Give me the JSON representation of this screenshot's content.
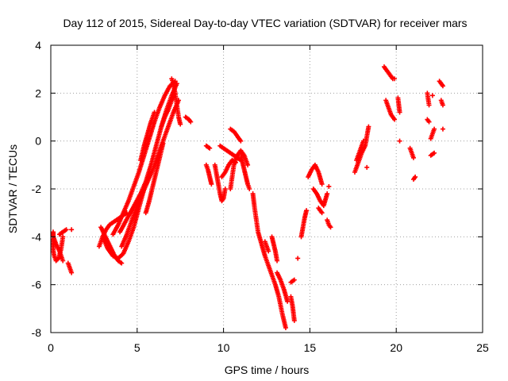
{
  "chart_data": {
    "type": "scatter",
    "title": "Day 112 of 2015, Sidereal Day-to-day VTEC variation (SDTVAR) for receiver mars",
    "xlabel": "GPS time / hours",
    "ylabel": "SDTVAR / TECUs",
    "xlim": [
      0,
      25
    ],
    "ylim": [
      -8,
      4
    ],
    "x_ticks": [
      "0",
      "5",
      "10",
      "15",
      "20",
      "25"
    ],
    "y_ticks": [
      "4",
      "2",
      "0",
      "-2",
      "-4",
      "-6",
      "-8"
    ],
    "grid": true,
    "marker": "plus",
    "marker_color": "#ff0000",
    "segments": [
      {
        "x": [
          0.0,
          0.1,
          0.2,
          0.3,
          0.45,
          0.6,
          0.7
        ],
        "y": [
          -4.1,
          -4.4,
          -4.8,
          -5.0,
          -4.9,
          -4.5,
          -4.0
        ]
      },
      {
        "x": [
          0.0,
          0.15,
          0.3,
          0.5,
          0.7
        ],
        "y": [
          -3.8,
          -4.0,
          -4.3,
          -4.6,
          -5.0
        ]
      },
      {
        "x": [
          0.5,
          0.7,
          0.9
        ],
        "y": [
          -3.9,
          -3.8,
          -3.7
        ]
      },
      {
        "x": [
          1.0,
          1.1,
          1.2
        ],
        "y": [
          -5.1,
          -5.3,
          -5.5
        ]
      },
      {
        "x": [
          1.2
        ],
        "y": [
          -3.7
        ]
      },
      {
        "x": [
          2.8,
          3.0,
          3.2,
          3.4,
          3.6,
          3.8,
          4.0,
          4.2,
          4.4
        ],
        "y": [
          -4.4,
          -4.0,
          -3.7,
          -3.5,
          -3.4,
          -3.3,
          -3.2,
          -3.1,
          -3.0
        ]
      },
      {
        "x": [
          2.9,
          3.1,
          3.3,
          3.5,
          3.7,
          3.9,
          4.1
        ],
        "y": [
          -3.6,
          -3.9,
          -4.2,
          -4.5,
          -4.8,
          -5.0,
          -5.1
        ]
      },
      {
        "x": [
          3.0,
          3.3,
          3.6,
          3.9,
          4.2,
          4.5,
          4.8,
          5.1,
          5.4
        ],
        "y": [
          -4.0,
          -4.5,
          -4.8,
          -4.9,
          -4.7,
          -4.2,
          -3.6,
          -2.8,
          -2.0
        ]
      },
      {
        "x": [
          3.6,
          3.9,
          4.2,
          4.5,
          4.8,
          5.1,
          5.4,
          5.7,
          6.0,
          6.3,
          6.6,
          6.9,
          7.2
        ],
        "y": [
          -3.9,
          -3.5,
          -3.0,
          -2.5,
          -1.9,
          -1.3,
          -0.6,
          0.1,
          0.8,
          1.4,
          1.9,
          2.3,
          2.5
        ]
      },
      {
        "x": [
          4.0,
          4.3,
          4.6,
          4.9,
          5.2,
          5.5,
          5.8,
          6.1,
          6.4,
          6.7,
          7.0,
          7.3
        ],
        "y": [
          -3.8,
          -3.4,
          -3.0,
          -2.6,
          -2.2,
          -1.7,
          -1.0,
          -0.2,
          0.6,
          1.3,
          1.9,
          2.4
        ]
      },
      {
        "x": [
          4.1,
          4.4,
          4.7,
          5.0,
          5.3,
          5.6,
          5.9,
          6.2,
          6.5,
          6.8,
          7.1,
          7.4
        ],
        "y": [
          -4.4,
          -3.9,
          -3.3,
          -2.7,
          -2.2,
          -1.7,
          -1.2,
          -0.6,
          0.0,
          0.6,
          1.2,
          1.7
        ]
      },
      {
        "x": [
          5.2,
          5.4,
          5.6,
          5.8,
          6.0
        ],
        "y": [
          -0.8,
          -0.2,
          0.3,
          0.8,
          1.2
        ]
      },
      {
        "x": [
          5.5,
          5.7,
          5.9,
          6.1,
          6.3,
          6.5
        ],
        "y": [
          -3.0,
          -2.5,
          -1.9,
          -1.3,
          -0.7,
          -0.1
        ]
      },
      {
        "x": [
          6.4,
          6.6,
          6.8,
          7.0,
          7.2
        ],
        "y": [
          0.6,
          1.0,
          1.3,
          1.7,
          2.0
        ]
      },
      {
        "x": [
          7.0,
          7.1,
          7.2,
          7.3,
          7.4,
          7.5
        ],
        "y": [
          2.6,
          2.4,
          2.0,
          1.5,
          1.0,
          0.7
        ]
      },
      {
        "x": [
          7.8,
          8.0,
          8.1
        ],
        "y": [
          1.0,
          0.9,
          0.8
        ]
      },
      {
        "x": [
          9.0,
          9.2
        ],
        "y": [
          -0.2,
          -0.3
        ]
      },
      {
        "x": [
          9.0,
          9.1,
          9.2,
          9.3
        ],
        "y": [
          -1.0,
          -1.2,
          -1.5,
          -1.8
        ]
      },
      {
        "x": [
          9.5,
          9.6,
          9.7,
          9.8,
          9.9,
          10.0,
          10.1
        ],
        "y": [
          -1.0,
          -1.4,
          -1.8,
          -2.2,
          -2.5,
          -2.4,
          -2.0
        ]
      },
      {
        "x": [
          9.8,
          10.0,
          10.2,
          10.4,
          10.6,
          10.8,
          11.0
        ],
        "y": [
          -0.2,
          -0.3,
          -0.4,
          -0.5,
          -0.6,
          -0.7,
          -0.8
        ]
      },
      {
        "x": [
          9.9,
          10.1,
          10.3,
          10.5,
          10.7
        ],
        "y": [
          -1.5,
          -1.3,
          -1.0,
          -0.8,
          -0.9
        ]
      },
      {
        "x": [
          10.4,
          10.5,
          10.6,
          10.8,
          11.0,
          11.2,
          11.4
        ],
        "y": [
          -2.0,
          -1.5,
          -1.0,
          -0.6,
          -0.4,
          -0.6,
          -1.0
        ]
      },
      {
        "x": [
          10.4,
          10.6,
          10.8,
          11.0
        ],
        "y": [
          0.5,
          0.4,
          0.2,
          0.0
        ]
      },
      {
        "x": [
          11.0,
          11.1,
          11.2,
          11.3,
          11.4,
          11.5
        ],
        "y": [
          -0.5,
          -0.9,
          -1.2,
          -1.5,
          -1.8,
          -2.0
        ]
      },
      {
        "x": [
          11.7,
          11.8,
          11.9,
          12.0,
          12.2,
          12.4,
          12.6,
          12.8,
          13.0,
          13.2,
          13.4,
          13.6
        ],
        "y": [
          -2.2,
          -2.8,
          -3.3,
          -3.8,
          -4.3,
          -4.8,
          -5.2,
          -5.6,
          -6.0,
          -6.5,
          -7.2,
          -7.8
        ]
      },
      {
        "x": [
          12.4,
          12.5,
          12.6
        ],
        "y": [
          -4.2,
          -4.4,
          -4.6
        ]
      },
      {
        "x": [
          12.8,
          12.9,
          13.0,
          13.1
        ],
        "y": [
          -4.0,
          -4.3,
          -4.6,
          -5.0
        ]
      },
      {
        "x": [
          13.1,
          13.3,
          13.5,
          13.7
        ],
        "y": [
          -5.5,
          -5.8,
          -6.2,
          -6.7
        ]
      },
      {
        "x": [
          13.9,
          14.0,
          14.1
        ],
        "y": [
          -6.5,
          -6.9,
          -7.5
        ]
      },
      {
        "x": [
          13.9,
          14.1
        ],
        "y": [
          -5.9,
          -5.8
        ]
      },
      {
        "x": [
          14.3
        ],
        "y": [
          -4.9
        ]
      },
      {
        "x": [
          14.5,
          14.6,
          14.7,
          14.8
        ],
        "y": [
          -4.0,
          -3.6,
          -3.2,
          -2.9
        ]
      },
      {
        "x": [
          14.9,
          15.1,
          15.3,
          15.5,
          15.7
        ],
        "y": [
          -1.5,
          -1.2,
          -1.0,
          -1.3,
          -1.8
        ]
      },
      {
        "x": [
          15.2,
          15.4,
          15.6,
          15.8,
          16.0
        ],
        "y": [
          -2.0,
          -2.2,
          -2.5,
          -2.7,
          -2.2
        ]
      },
      {
        "x": [
          15.5,
          15.6,
          15.7
        ],
        "y": [
          -2.8,
          -2.9,
          -3.0
        ]
      },
      {
        "x": [
          16.0,
          16.1,
          16.2
        ],
        "y": [
          -3.3,
          -3.5,
          -3.6
        ]
      },
      {
        "x": [
          16.1
        ],
        "y": [
          -1.9
        ]
      },
      {
        "x": [
          17.6,
          17.8,
          18.0,
          18.2,
          18.4
        ],
        "y": [
          -1.3,
          -0.9,
          -0.5,
          -0.2,
          0.6
        ]
      },
      {
        "x": [
          17.7,
          17.9,
          18.1
        ],
        "y": [
          -0.8,
          -0.4,
          0.0
        ]
      },
      {
        "x": [
          18.3
        ],
        "y": [
          -1.1
        ]
      },
      {
        "x": [
          19.3,
          19.4,
          19.5,
          19.6,
          19.7,
          19.8,
          19.9
        ],
        "y": [
          3.1,
          3.0,
          2.9,
          2.8,
          2.7,
          2.6,
          2.6
        ]
      },
      {
        "x": [
          19.4,
          19.5,
          19.6,
          19.7,
          19.8,
          19.9
        ],
        "y": [
          1.7,
          1.5,
          1.3,
          1.1,
          1.0,
          0.9
        ]
      },
      {
        "x": [
          20.1,
          20.2
        ],
        "y": [
          1.8,
          1.2
        ]
      },
      {
        "x": [
          20.2
        ],
        "y": [
          0.0
        ]
      },
      {
        "x": [
          20.8,
          20.9,
          21.0
        ],
        "y": [
          -0.3,
          -0.5,
          -0.7
        ]
      },
      {
        "x": [
          21.0,
          21.1
        ],
        "y": [
          -1.6,
          -1.5
        ]
      },
      {
        "x": [
          21.8,
          21.9
        ],
        "y": [
          2.0,
          1.5
        ]
      },
      {
        "x": [
          21.8,
          21.9
        ],
        "y": [
          0.9,
          0.8
        ]
      },
      {
        "x": [
          22.0,
          22.2
        ],
        "y": [
          -0.6,
          -0.5
        ]
      },
      {
        "x": [
          22.0,
          22.1,
          22.2
        ],
        "y": [
          0.1,
          0.3,
          0.5
        ]
      },
      {
        "x": [
          22.1
        ],
        "y": [
          1.9
        ]
      },
      {
        "x": [
          22.5,
          22.6,
          22.7
        ],
        "y": [
          2.5,
          2.4,
          2.3
        ]
      },
      {
        "x": [
          22.6,
          22.7
        ],
        "y": [
          1.7,
          1.5
        ]
      },
      {
        "x": [
          22.7
        ],
        "y": [
          0.5
        ]
      }
    ]
  }
}
